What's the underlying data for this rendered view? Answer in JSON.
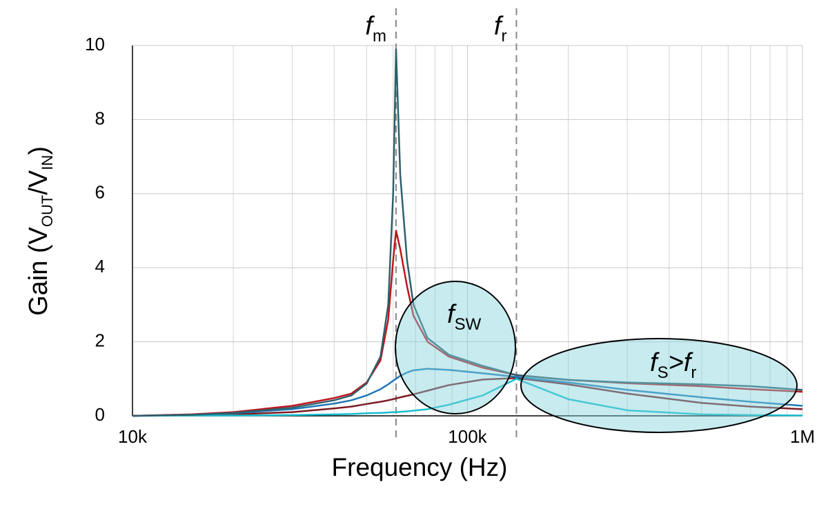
{
  "chart_data": {
    "type": "line",
    "xlabel": "Frequency (Hz)",
    "ylabel": [
      "Gain (V",
      "OUT",
      "/V",
      "IN",
      ")"
    ],
    "log_x": true,
    "grid": true,
    "xlim": [
      10000,
      1000000
    ],
    "xticks": [
      {
        "value": 10000,
        "label": "10k"
      },
      {
        "value": 100000,
        "label": "100k"
      },
      {
        "value": 1000000,
        "label": "1M"
      }
    ],
    "ylim": [
      0,
      10
    ],
    "yticks": [
      0,
      2,
      4,
      6,
      8,
      10
    ],
    "x": [
      10000,
      15000,
      20000,
      30000,
      40000,
      45000,
      50000,
      55000,
      58000,
      60000,
      61200,
      63000,
      66000,
      69000,
      76000,
      88000,
      111000,
      140000,
      200000,
      300000,
      500000,
      700000,
      1000000
    ],
    "series": [
      {
        "color": "#7b1a22",
        "values": [
          0,
          0.02,
          0.04,
          0.1,
          0.2,
          0.25,
          0.32,
          0.38,
          0.42,
          0.45,
          0.47,
          0.5,
          0.54,
          0.58,
          0.68,
          0.83,
          0.98,
          1.02,
          0.85,
          0.6,
          0.35,
          0.25,
          0.18
        ]
      },
      {
        "color": "#17becf",
        "values": [
          0,
          0.01,
          0.01,
          0.02,
          0.04,
          0.05,
          0.07,
          0.08,
          0.09,
          0.1,
          0.1,
          0.11,
          0.12,
          0.14,
          0.18,
          0.3,
          0.55,
          1.0,
          0.45,
          0.15,
          0.04,
          0.02,
          0.01
        ]
      },
      {
        "color": "#1f78b4",
        "values": [
          0,
          0.03,
          0.07,
          0.18,
          0.33,
          0.42,
          0.55,
          0.72,
          0.85,
          0.95,
          1.0,
          1.08,
          1.17,
          1.23,
          1.27,
          1.24,
          1.15,
          1.05,
          0.9,
          0.7,
          0.5,
          0.38,
          0.27
        ]
      },
      {
        "color": "#c0141c",
        "values": [
          0,
          0.04,
          0.1,
          0.27,
          0.48,
          0.6,
          0.9,
          1.5,
          2.6,
          4.2,
          5.0,
          4.5,
          3.5,
          2.7,
          2.0,
          1.6,
          1.3,
          1.1,
          0.97,
          0.88,
          0.8,
          0.72,
          0.65
        ]
      },
      {
        "color": "#2e5f6b",
        "values": [
          0,
          0.03,
          0.08,
          0.22,
          0.42,
          0.55,
          0.87,
          1.6,
          3.0,
          6.0,
          9.9,
          6.5,
          4.2,
          3.0,
          2.1,
          1.65,
          1.35,
          1.1,
          0.97,
          0.9,
          0.85,
          0.8,
          0.7
        ]
      }
    ],
    "vlines": [
      {
        "x": 61200,
        "parts": [
          "f",
          "m"
        ]
      },
      {
        "x": 140000,
        "parts": [
          "f",
          "r"
        ]
      }
    ],
    "regions": [
      {
        "parts": [
          "f",
          "SW"
        ]
      },
      {
        "parts": [
          "f",
          "S",
          ">f",
          "r"
        ]
      }
    ]
  }
}
